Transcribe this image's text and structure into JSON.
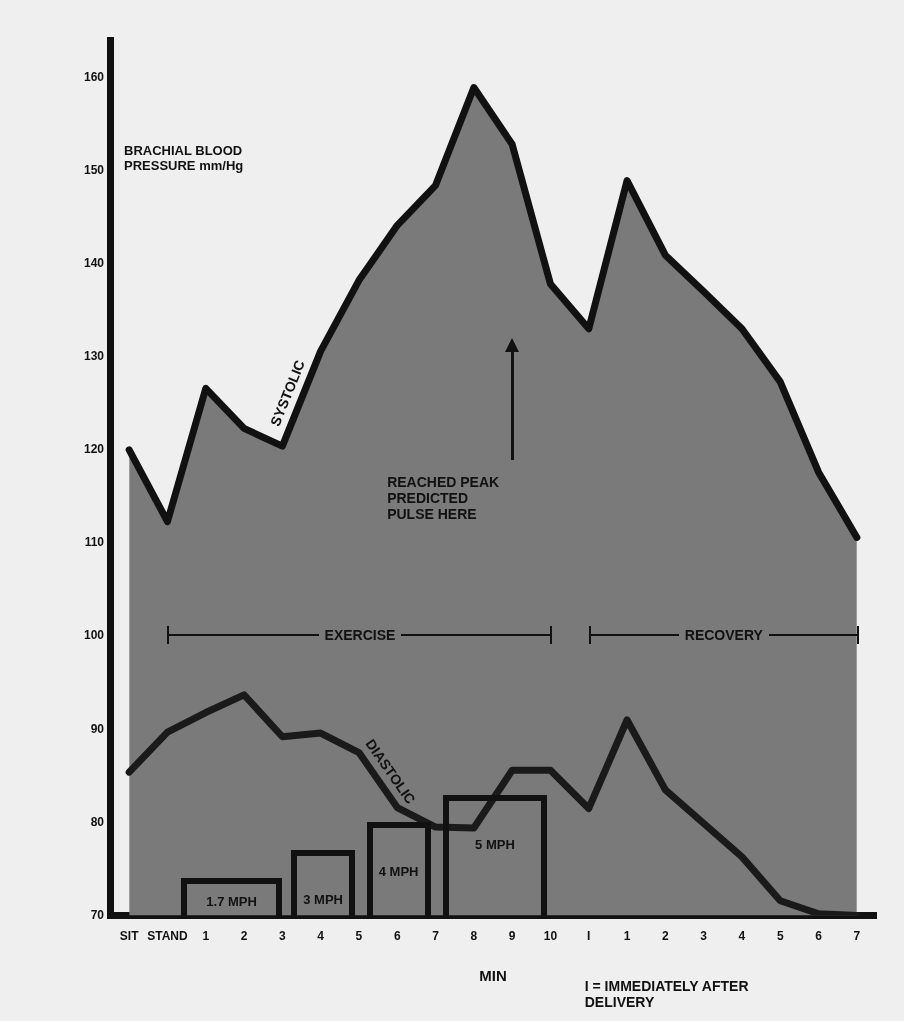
{
  "chart_data": {
    "type": "line",
    "xlabel": "MIN",
    "ylabel": "BRACHIAL BLOOD PRESSURE mm/Hg",
    "categories": [
      "SIT",
      "STAND",
      "1",
      "2",
      "3",
      "4",
      "5",
      "6",
      "7",
      "8",
      "9",
      "10",
      "I",
      "1",
      "2",
      "3",
      "4",
      "5",
      "6",
      "7"
    ],
    "series": [
      {
        "name": "SYSTOLIC",
        "type": "area",
        "color": "#7a7a7a",
        "values": [
          120,
          112.3,
          126.6,
          122.3,
          120.4,
          130.6,
          138.2,
          144.1,
          148.4,
          158.9,
          152.8,
          137.8,
          133,
          148.9,
          140.9,
          137,
          133,
          127.3,
          117.6,
          110.6
        ]
      },
      {
        "name": "DIASTOLIC",
        "type": "line",
        "color": "#1a1a1a",
        "values": [
          85.4,
          89.7,
          91.8,
          93.7,
          89.2,
          89.6,
          87.5,
          81.6,
          79.5,
          79.4,
          85.6,
          85.6,
          81.5,
          91,
          83.5,
          79.9,
          76.3,
          71.6,
          70.2,
          70
        ]
      }
    ],
    "ylim": [
      70,
      164
    ],
    "yticks": [
      70,
      80,
      90,
      100,
      110,
      120,
      130,
      140,
      150,
      160
    ],
    "grid": false,
    "legend": false,
    "marker": "none",
    "line_style": "solid",
    "annotations": [
      "1.7 MPH",
      "3 MPH",
      "4 MPH",
      "5 MPH",
      "REACHED PEAK PREDICTED PULSE HERE",
      "EXERCISE",
      "RECOVERY",
      "I = IMMEDIATELY AFTER DELIVERY"
    ]
  }
}
